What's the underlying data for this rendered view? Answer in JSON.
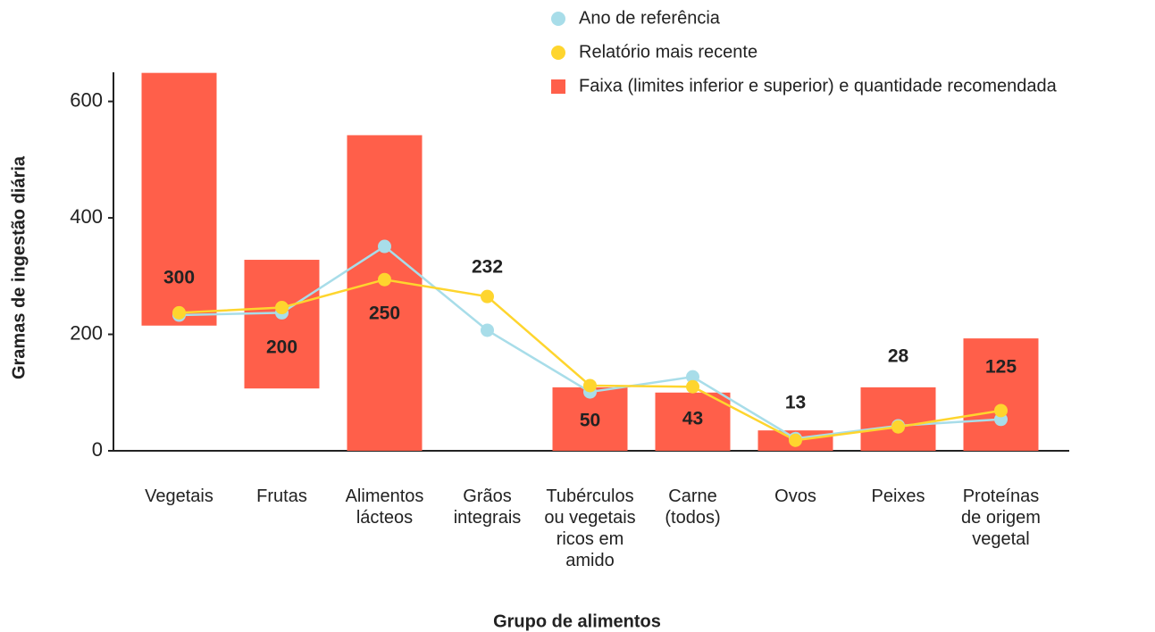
{
  "chart_data": {
    "type": "range-bar-line",
    "x_label": "Grupo de alimentos",
    "y_label": "Gramas de ingestão diária",
    "categories": [
      [
        "Vegetais"
      ],
      [
        "Frutas"
      ],
      [
        "Alimentos",
        "lácteos"
      ],
      [
        "Grãos",
        "integrais"
      ],
      [
        "Tubérculos",
        "ou vegetais",
        "ricos em",
        "amido"
      ],
      [
        "Carne",
        "(todos)"
      ],
      [
        "Ovos"
      ],
      [
        "Peixes"
      ],
      [
        "Proteínas",
        "de origem",
        "vegetal"
      ]
    ],
    "ylim": [
      0,
      650
    ],
    "yticks": [
      0,
      200,
      400,
      600
    ],
    "range": {
      "name": "Faixa (limites inferior e superior) e quantidade recomendada",
      "color": "#ff5f4a",
      "low": [
        215,
        107,
        0,
        null,
        0,
        0,
        0,
        0,
        0
      ],
      "high": [
        649,
        328,
        542,
        null,
        109,
        100,
        35,
        109,
        193
      ],
      "recommended": [
        300,
        200,
        250,
        232,
        50,
        43,
        13,
        28,
        125
      ]
    },
    "series": [
      {
        "name": "Ano de referência",
        "color": "#a8dde9",
        "values": [
          233,
          237,
          351,
          207,
          101,
          127,
          21,
          43,
          54
        ]
      },
      {
        "name": "Relatório mais recente",
        "color": "#fed52e",
        "values": [
          237,
          246,
          294,
          265,
          112,
          110,
          18,
          41,
          69
        ]
      }
    ]
  }
}
